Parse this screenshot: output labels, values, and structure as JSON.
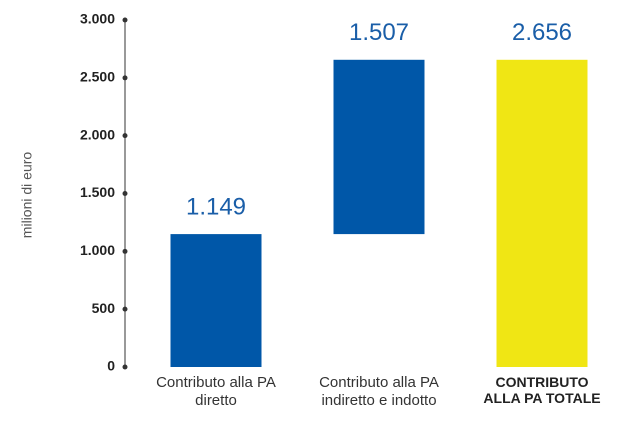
{
  "chart_data": {
    "type": "waterfall",
    "y_label": "milioni di euro",
    "categories": [
      "Contributo alla PA diretto",
      "Contributo alla PA indiretto e indotto",
      "CONTRIBUTO ALLA PA TOTALE"
    ],
    "values": [
      1149,
      1507,
      2656
    ],
    "value_labels": [
      "1.149",
      "1.507",
      "2.656"
    ],
    "is_total": [
      false,
      false,
      true
    ],
    "colors": [
      "#0057a8",
      "#0057a8",
      "#f0e614"
    ],
    "ylim": [
      0,
      3000
    ],
    "yticks": [
      0,
      500,
      {
        "value": 1000,
        "label": "1.000"
      },
      {
        "value": 1500,
        "label": "1.500"
      },
      {
        "value": 2000,
        "label": "2.000"
      },
      {
        "value": 2500,
        "label": "2.500"
      },
      {
        "value": 3000,
        "label": "3.000"
      }
    ]
  }
}
